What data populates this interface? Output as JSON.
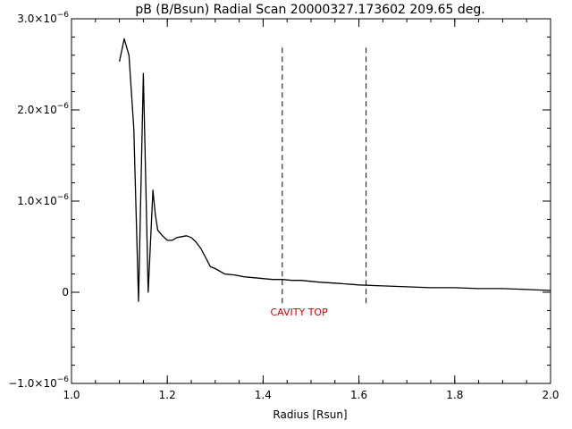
{
  "chart_data": {
    "type": "line",
    "title": "pB (B/Bsun) Radial Scan 20000327.173602 209.65 deg.",
    "xlabel": "Radius [Rsun]",
    "ylabel": "",
    "xlim": [
      1.0,
      2.0
    ],
    "ylim": [
      -1e-06,
      3e-06
    ],
    "x_ticks": [
      {
        "value": 1.0,
        "label": "1.0"
      },
      {
        "value": 1.2,
        "label": "1.2"
      },
      {
        "value": 1.4,
        "label": "1.4"
      },
      {
        "value": 1.6,
        "label": "1.6"
      },
      {
        "value": 1.8,
        "label": "1.8"
      },
      {
        "value": 2.0,
        "label": "2.0"
      }
    ],
    "y_ticks": [
      {
        "value": 3e-06,
        "base": "3.0×10",
        "exp": "−6"
      },
      {
        "value": 2e-06,
        "base": "2.0×10",
        "exp": "−6"
      },
      {
        "value": 1e-06,
        "base": "1.0×10",
        "exp": "−6"
      },
      {
        "value": 0,
        "base": "0",
        "exp": ""
      },
      {
        "value": -1e-06,
        "base": "−1.0×10",
        "exp": "−6"
      }
    ],
    "grid": false,
    "series": [
      {
        "color": "#000000",
        "points": [
          [
            1.1,
            2.53e-06
          ],
          [
            1.11,
            2.78e-06
          ],
          [
            1.12,
            2.6e-06
          ],
          [
            1.13,
            1.8e-06
          ],
          [
            1.14,
            -1e-07
          ],
          [
            1.15,
            2.4e-06
          ],
          [
            1.16,
            0.0
          ],
          [
            1.17,
            1.12e-06
          ],
          [
            1.175,
            8.5e-07
          ],
          [
            1.18,
            6.8e-07
          ],
          [
            1.19,
            6.2e-07
          ],
          [
            1.2,
            5.7e-07
          ],
          [
            1.21,
            5.7e-07
          ],
          [
            1.22,
            6e-07
          ],
          [
            1.23,
            6.1e-07
          ],
          [
            1.24,
            6.2e-07
          ],
          [
            1.25,
            6e-07
          ],
          [
            1.26,
            5.5e-07
          ],
          [
            1.27,
            4.8e-07
          ],
          [
            1.28,
            3.8e-07
          ],
          [
            1.29,
            2.8e-07
          ],
          [
            1.3,
            2.6e-07
          ],
          [
            1.32,
            2e-07
          ],
          [
            1.34,
            1.9e-07
          ],
          [
            1.36,
            1.7e-07
          ],
          [
            1.38,
            1.6e-07
          ],
          [
            1.4,
            1.5e-07
          ],
          [
            1.42,
            1.4e-07
          ],
          [
            1.44,
            1.4e-07
          ],
          [
            1.46,
            1.3e-07
          ],
          [
            1.48,
            1.3e-07
          ],
          [
            1.5,
            1.2e-07
          ],
          [
            1.52,
            1.1e-07
          ],
          [
            1.55,
            1e-07
          ],
          [
            1.6,
            8e-08
          ],
          [
            1.65,
            7e-08
          ],
          [
            1.7,
            6e-08
          ],
          [
            1.75,
            5e-08
          ],
          [
            1.8,
            5e-08
          ],
          [
            1.85,
            4e-08
          ],
          [
            1.9,
            4e-08
          ],
          [
            1.95,
            3e-08
          ],
          [
            2.0,
            2e-08
          ]
        ]
      }
    ],
    "vlines": [
      {
        "x": 1.44,
        "y_range": [
          -1.2e-07,
          2.7e-06
        ],
        "style": "dashed"
      },
      {
        "x": 1.615,
        "y_range": [
          -1.2e-07,
          2.7e-06
        ],
        "style": "dashed"
      }
    ],
    "annotations": [
      {
        "text": "CAVITY TOP",
        "x": 1.475,
        "y": -1.2e-07,
        "color": "#cc0000"
      }
    ]
  }
}
